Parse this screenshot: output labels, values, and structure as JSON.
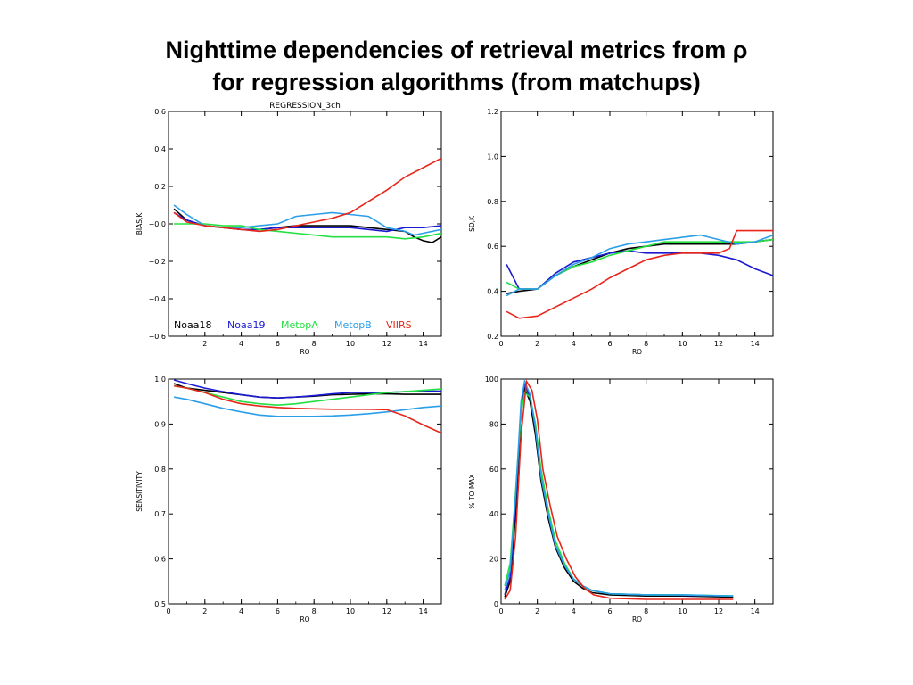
{
  "slide": {
    "title_line1": "Nighttime dependencies of retrieval metrics from ρ",
    "title_line2": "for regression algorithms (from matchups)"
  },
  "colors": {
    "Noaa18": "#000000",
    "Noaa19": "#1a1ad2",
    "MetopA": "#22e040",
    "MetopB": "#2a9ee8",
    "VIIRS": "#e8261a"
  },
  "chart_data": [
    {
      "id": "bias",
      "type": "line",
      "title": "REGRESSION_3ch",
      "xlabel": "RO",
      "ylabel": "BIAS,K",
      "xlim": [
        0,
        15
      ],
      "ylim": [
        -0.6,
        0.6
      ],
      "xticks": [
        2,
        4,
        6,
        8,
        10,
        12,
        14
      ],
      "yticks": [
        -0.6,
        -0.4,
        -0.2,
        0.0,
        0.2,
        0.4,
        0.6
      ],
      "ytick_labels": [
        "−0.6",
        "−0.4",
        "−0.2",
        "−0.0",
        "0.2",
        "0.4",
        "0.6"
      ],
      "legend": [
        "Noaa18",
        "Noaa19",
        "MetopA",
        "MetopB",
        "VIIRS"
      ],
      "series": [
        {
          "name": "Noaa18",
          "x": [
            0.3,
            1,
            2,
            3,
            4,
            5,
            6,
            7,
            8,
            9,
            10,
            11,
            12,
            13,
            13.5,
            14,
            14.5,
            15
          ],
          "y": [
            0.08,
            0.02,
            -0.01,
            -0.02,
            -0.03,
            -0.03,
            -0.02,
            -0.01,
            -0.01,
            -0.01,
            -0.01,
            -0.02,
            -0.03,
            -0.04,
            -0.07,
            -0.09,
            -0.1,
            -0.07
          ]
        },
        {
          "name": "Noaa19",
          "x": [
            0.3,
            1,
            2,
            3,
            4,
            5,
            6,
            7,
            8,
            9,
            10,
            11,
            12,
            13,
            14,
            15
          ],
          "y": [
            0.06,
            0.02,
            -0.01,
            -0.02,
            -0.03,
            -0.03,
            -0.02,
            -0.02,
            -0.02,
            -0.02,
            -0.02,
            -0.03,
            -0.04,
            -0.02,
            -0.02,
            -0.01
          ]
        },
        {
          "name": "MetopA",
          "x": [
            0.3,
            1,
            2,
            3,
            4,
            5,
            6,
            7,
            8,
            9,
            10,
            11,
            12,
            13,
            14,
            15
          ],
          "y": [
            0.0,
            0.0,
            0.0,
            -0.01,
            -0.01,
            -0.03,
            -0.04,
            -0.05,
            -0.06,
            -0.07,
            -0.07,
            -0.07,
            -0.07,
            -0.08,
            -0.07,
            -0.05
          ]
        },
        {
          "name": "MetopB",
          "x": [
            0.3,
            1,
            2,
            3,
            4,
            5,
            6,
            7,
            8,
            9,
            10,
            11,
            12,
            13,
            13.5,
            14,
            15
          ],
          "y": [
            0.1,
            0.05,
            -0.01,
            -0.02,
            -0.02,
            -0.01,
            0.0,
            0.04,
            0.05,
            0.06,
            0.05,
            0.04,
            -0.02,
            -0.04,
            -0.06,
            -0.05,
            -0.03
          ]
        },
        {
          "name": "VIIRS",
          "x": [
            0.3,
            1,
            2,
            3,
            4,
            5,
            6,
            7,
            8,
            9,
            10,
            11,
            12,
            13,
            14,
            15
          ],
          "y": [
            0.06,
            0.01,
            -0.01,
            -0.02,
            -0.03,
            -0.04,
            -0.03,
            -0.01,
            0.01,
            0.03,
            0.06,
            0.12,
            0.18,
            0.25,
            0.3,
            0.35
          ]
        }
      ]
    },
    {
      "id": "sd",
      "type": "line",
      "title": "",
      "xlabel": "RO",
      "ylabel": "SD,K",
      "xlim": [
        0,
        15
      ],
      "ylim": [
        0.2,
        1.2
      ],
      "xticks": [
        0,
        2,
        4,
        6,
        8,
        10,
        12,
        14
      ],
      "yticks": [
        0.2,
        0.4,
        0.6,
        0.8,
        1.0,
        1.2
      ],
      "ytick_labels": [
        "0.2",
        "0.4",
        "0.6",
        "0.8",
        "1.0",
        "1.2"
      ],
      "series": [
        {
          "name": "Noaa18",
          "x": [
            0.3,
            1,
            2,
            3,
            4,
            5,
            6,
            7,
            8,
            9,
            10,
            11,
            12,
            13,
            14,
            15
          ],
          "y": [
            0.39,
            0.4,
            0.41,
            0.47,
            0.51,
            0.54,
            0.57,
            0.59,
            0.6,
            0.61,
            0.61,
            0.61,
            0.61,
            0.61,
            0.62,
            0.63
          ]
        },
        {
          "name": "Noaa19",
          "x": [
            0.3,
            1,
            2,
            3,
            4,
            5,
            6,
            7,
            8,
            9,
            10,
            11,
            12,
            13,
            14,
            15
          ],
          "y": [
            0.52,
            0.41,
            0.41,
            0.48,
            0.53,
            0.55,
            0.57,
            0.58,
            0.57,
            0.57,
            0.57,
            0.57,
            0.56,
            0.54,
            0.5,
            0.47
          ]
        },
        {
          "name": "MetopA",
          "x": [
            0.3,
            1,
            2,
            3,
            4,
            5,
            6,
            7,
            8,
            9,
            10,
            11,
            12,
            13,
            14,
            15
          ],
          "y": [
            0.44,
            0.41,
            0.41,
            0.47,
            0.51,
            0.53,
            0.56,
            0.58,
            0.6,
            0.62,
            0.62,
            0.62,
            0.62,
            0.62,
            0.62,
            0.63
          ]
        },
        {
          "name": "MetopB",
          "x": [
            0.3,
            1,
            2,
            3,
            4,
            5,
            6,
            7,
            8,
            9,
            10,
            11,
            12,
            13,
            14,
            15
          ],
          "y": [
            0.38,
            0.41,
            0.41,
            0.47,
            0.52,
            0.55,
            0.59,
            0.61,
            0.62,
            0.63,
            0.64,
            0.65,
            0.63,
            0.61,
            0.62,
            0.65
          ]
        },
        {
          "name": "VIIRS",
          "x": [
            0.3,
            1,
            2,
            3,
            4,
            5,
            6,
            7,
            8,
            9,
            10,
            11,
            12,
            12.6,
            13,
            14,
            15
          ],
          "y": [
            0.31,
            0.28,
            0.29,
            0.33,
            0.37,
            0.41,
            0.46,
            0.5,
            0.54,
            0.56,
            0.57,
            0.57,
            0.57,
            0.59,
            0.67,
            0.67,
            0.67
          ]
        }
      ]
    },
    {
      "id": "sensitivity",
      "type": "line",
      "title": "",
      "xlabel": "RO",
      "ylabel": "SENSITIVITY",
      "xlim": [
        0,
        15
      ],
      "ylim": [
        0.5,
        1.0
      ],
      "xticks": [
        0,
        2,
        4,
        6,
        8,
        10,
        12,
        14
      ],
      "yticks": [
        0.5,
        0.6,
        0.7,
        0.8,
        0.9,
        1.0
      ],
      "ytick_labels": [
        "0.5",
        "0.6",
        "0.7",
        "0.8",
        "0.9",
        "1.0"
      ],
      "series": [
        {
          "name": "Noaa18",
          "x": [
            0.3,
            1,
            2,
            3,
            4,
            5,
            6,
            7,
            8,
            9,
            10,
            11,
            12,
            13,
            14,
            15
          ],
          "y": [
            0.99,
            0.98,
            0.975,
            0.97,
            0.965,
            0.96,
            0.958,
            0.96,
            0.962,
            0.965,
            0.966,
            0.967,
            0.967,
            0.966,
            0.966,
            0.966
          ]
        },
        {
          "name": "Noaa19",
          "x": [
            0.3,
            1,
            2,
            3,
            4,
            5,
            6,
            7,
            8,
            9,
            10,
            11,
            12,
            13,
            14,
            15
          ],
          "y": [
            0.998,
            0.99,
            0.98,
            0.972,
            0.965,
            0.96,
            0.958,
            0.96,
            0.963,
            0.967,
            0.97,
            0.97,
            0.97,
            0.972,
            0.973,
            0.973
          ]
        },
        {
          "name": "MetopA",
          "x": [
            0.3,
            1,
            2,
            3,
            4,
            5,
            6,
            7,
            8,
            9,
            10,
            11,
            12,
            13,
            14,
            15
          ],
          "y": [
            0.985,
            0.98,
            0.97,
            0.96,
            0.95,
            0.945,
            0.942,
            0.945,
            0.95,
            0.955,
            0.96,
            0.965,
            0.97,
            0.972,
            0.975,
            0.978
          ]
        },
        {
          "name": "MetopB",
          "x": [
            0.3,
            1,
            2,
            3,
            4,
            5,
            6,
            7,
            8,
            9,
            10,
            11,
            12,
            13,
            14,
            15
          ],
          "y": [
            0.96,
            0.955,
            0.945,
            0.935,
            0.927,
            0.92,
            0.917,
            0.917,
            0.917,
            0.918,
            0.92,
            0.923,
            0.927,
            0.932,
            0.937,
            0.94
          ]
        },
        {
          "name": "VIIRS",
          "x": [
            0.3,
            1,
            2,
            3,
            4,
            5,
            6,
            7,
            8,
            9,
            10,
            11,
            12,
            13,
            14,
            15
          ],
          "y": [
            0.985,
            0.98,
            0.97,
            0.955,
            0.945,
            0.94,
            0.937,
            0.935,
            0.934,
            0.933,
            0.933,
            0.933,
            0.932,
            0.918,
            0.898,
            0.88
          ]
        }
      ]
    },
    {
      "id": "pct_to_max",
      "type": "line",
      "title": "",
      "xlabel": "RO",
      "ylabel": "% TO MAX",
      "xlim": [
        0,
        15
      ],
      "ylim": [
        0,
        100
      ],
      "xticks": [
        0,
        2,
        4,
        6,
        8,
        10,
        12,
        14
      ],
      "yticks": [
        0,
        20,
        40,
        60,
        80,
        100
      ],
      "ytick_labels": [
        "0",
        "20",
        "40",
        "60",
        "80",
        "100"
      ],
      "series": [
        {
          "name": "Noaa18",
          "x": [
            0.2,
            0.5,
            0.8,
            1.1,
            1.3,
            1.6,
            1.9,
            2.2,
            2.6,
            3.0,
            3.5,
            4.0,
            4.5,
            5.0,
            6.0,
            8.0,
            10.0,
            12.8
          ],
          "y": [
            3,
            10,
            40,
            85,
            96,
            90,
            75,
            55,
            38,
            25,
            16,
            10,
            7,
            5,
            4,
            3.5,
            3.5,
            3
          ]
        },
        {
          "name": "Noaa19",
          "x": [
            0.2,
            0.5,
            0.8,
            1.1,
            1.3,
            1.6,
            1.9,
            2.2,
            2.6,
            3.0,
            3.5,
            4.0,
            4.5,
            5.0,
            6.0,
            8.0,
            10.0,
            12.8
          ],
          "y": [
            4,
            12,
            45,
            88,
            98,
            92,
            78,
            58,
            40,
            26,
            17,
            11,
            8,
            6,
            4.5,
            4,
            3.8,
            3.5
          ]
        },
        {
          "name": "MetopA",
          "x": [
            0.2,
            0.5,
            0.8,
            1.1,
            1.3,
            1.6,
            1.9,
            2.2,
            2.6,
            3.0,
            3.5,
            4.0,
            4.5,
            5.0,
            6.0,
            8.0,
            10.0,
            12.8
          ],
          "y": [
            8,
            18,
            50,
            85,
            94,
            92,
            80,
            60,
            42,
            28,
            18,
            11,
            8,
            6,
            4.5,
            4,
            4,
            3.5
          ]
        },
        {
          "name": "MetopB",
          "x": [
            0.2,
            0.5,
            0.8,
            1.1,
            1.3,
            1.6,
            1.9,
            2.2,
            2.6,
            3.0,
            3.5,
            4.0,
            4.5,
            5.0,
            6.0,
            8.0,
            10.0,
            12.8
          ],
          "y": [
            6,
            15,
            48,
            90,
            99,
            93,
            78,
            57,
            40,
            26,
            17,
            11,
            8,
            6,
            4.5,
            4,
            4,
            3.5
          ]
        },
        {
          "name": "VIIRS",
          "x": [
            0.2,
            0.5,
            0.8,
            1.1,
            1.4,
            1.7,
            2.0,
            2.3,
            2.7,
            3.1,
            3.6,
            4.1,
            4.6,
            5.1,
            6.0,
            8.0,
            10.0,
            12.8
          ],
          "y": [
            2,
            6,
            30,
            75,
            99,
            95,
            82,
            60,
            44,
            30,
            20,
            12,
            7,
            4,
            2.5,
            2,
            2,
            2
          ]
        }
      ]
    }
  ]
}
